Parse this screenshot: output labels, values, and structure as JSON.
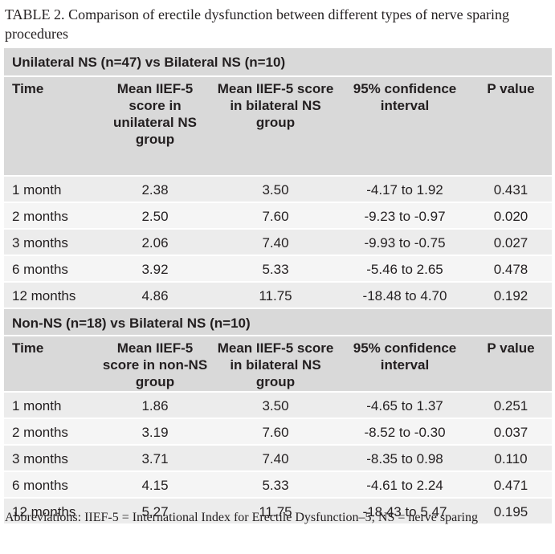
{
  "caption": {
    "label": "TABLE 2.",
    "text": "Comparison of erectile dysfunction between different types of nerve sparing procedures"
  },
  "sections": [
    {
      "title": "Unilateral NS (n=47) vs Bilateral NS (n=10)",
      "headers": [
        "Time",
        "Mean IIEF-5 score in unilateral NS group",
        "Mean IIEF-5 score in bilateral NS group",
        "95% confidence interval",
        "P value"
      ],
      "rows": [
        [
          "1 month",
          "2.38",
          "3.50",
          "-4.17 to 1.92",
          "0.431"
        ],
        [
          "2 months",
          "2.50",
          "7.60",
          "-9.23 to -0.97",
          "0.020"
        ],
        [
          "3 months",
          "2.06",
          "7.40",
          "-9.93 to -0.75",
          "0.027"
        ],
        [
          "6 months",
          "3.92",
          "5.33",
          "-5.46 to 2.65",
          "0.478"
        ],
        [
          "12 months",
          "4.86",
          "11.75",
          "-18.48 to 4.70",
          "0.192"
        ]
      ]
    },
    {
      "title": "Non-NS (n=18) vs Bilateral NS (n=10)",
      "headers": [
        "Time",
        "Mean IIEF-5 score in non-NS group",
        "Mean IIEF-5 score in bilateral NS group",
        "95% confidence interval",
        "P value"
      ],
      "rows": [
        [
          "1 month",
          "1.86",
          "3.50",
          "-4.65 to 1.37",
          "0.251"
        ],
        [
          "2 months",
          "3.19",
          "7.60",
          "-8.52 to -0.30",
          "0.037"
        ],
        [
          "3 months",
          "3.71",
          "7.40",
          "-8.35 to 0.98",
          "0.110"
        ],
        [
          "6 months",
          "4.15",
          "5.33",
          "-4.61 to 2.24",
          "0.471"
        ],
        [
          "12 months",
          "5.27",
          "11.75",
          "-18.43 to 5.47",
          "0.195"
        ]
      ]
    }
  ],
  "footnote": "Abbreviations: IIEF-5 = International Index for Erectile Dysfunction–5; NS = nerve sparing"
}
